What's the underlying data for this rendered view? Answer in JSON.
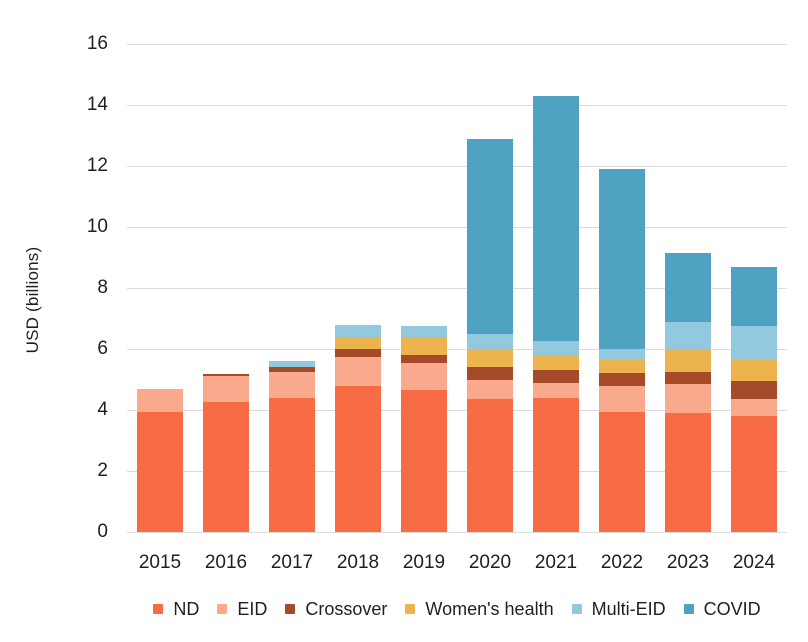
{
  "chart_data": {
    "type": "bar",
    "stacked": true,
    "title": "",
    "xlabel": "",
    "ylabel": "USD (billions)",
    "ylim": [
      0,
      16
    ],
    "y_ticks": [
      0,
      2,
      4,
      6,
      8,
      10,
      12,
      14,
      16
    ],
    "grid": true,
    "legend_position": "bottom",
    "categories": [
      "2015",
      "2016",
      "2017",
      "2018",
      "2019",
      "2020",
      "2021",
      "2022",
      "2023",
      "2024"
    ],
    "series": [
      {
        "name": "ND",
        "color": "#F76C45",
        "values": [
          3.95,
          4.25,
          4.4,
          4.8,
          4.65,
          4.35,
          4.4,
          3.95,
          3.9,
          3.8
        ]
      },
      {
        "name": "EID",
        "color": "#F9A98C",
        "values": [
          0.75,
          0.85,
          0.85,
          0.95,
          0.9,
          0.65,
          0.5,
          0.85,
          0.95,
          0.55
        ]
      },
      {
        "name": "Crossover",
        "color": "#A54B2A",
        "values": [
          0,
          0.07,
          0.15,
          0.25,
          0.25,
          0.4,
          0.4,
          0.4,
          0.4,
          0.6
        ]
      },
      {
        "name": "Women's health",
        "color": "#EDB44E",
        "values": [
          0,
          0,
          0,
          0.4,
          0.55,
          0.6,
          0.5,
          0.45,
          0.75,
          0.7
        ]
      },
      {
        "name": "Multi-EID",
        "color": "#93C9DE",
        "values": [
          0,
          0,
          0.2,
          0.4,
          0.4,
          0.5,
          0.45,
          0.35,
          0.9,
          1.1
        ]
      },
      {
        "name": "COVID",
        "color": "#4FA2C2",
        "values": [
          0,
          0,
          0,
          0,
          0,
          6.4,
          8.05,
          5.9,
          2.25,
          1.95
        ]
      }
    ],
    "totals": [
      4.7,
      5.17,
      5.6,
      6.8,
      6.75,
      12.9,
      14.3,
      11.9,
      9.15,
      8.7
    ],
    "gridline_color": "#dcdcdc",
    "text_color": "#1f1f1f"
  }
}
